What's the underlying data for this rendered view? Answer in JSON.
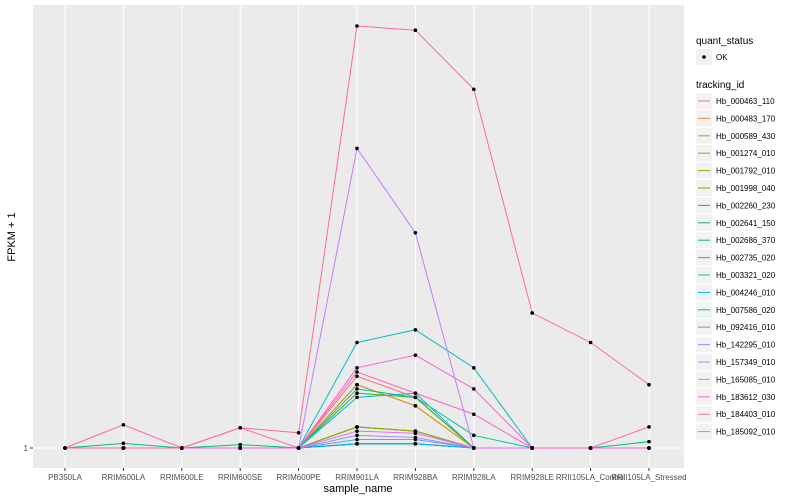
{
  "chart_data": {
    "type": "line",
    "title": "",
    "xlabel": "sample_name",
    "ylabel": "FPKM + 1",
    "y_tick_labels": [
      "1"
    ],
    "ylim": [
      0,
      1
    ],
    "grid": true,
    "legend_position": "right",
    "categories": [
      "PB350LA",
      "RRIM600LA",
      "RRIM600LE",
      "RRIM600SE",
      "RRIM600PE",
      "RRIM901LA",
      "RRIM928BA",
      "RRIM928LA",
      "RRIM928LE",
      "RRII105LA_Control",
      "RRII105LA_Stressed"
    ],
    "point_legend": {
      "title": "quant_status",
      "entries": [
        "OK"
      ]
    },
    "series_legend_title": "tracking_id",
    "series": [
      {
        "name": "Hb_000463_110",
        "color": "#F8766D",
        "values": [
          0,
          0,
          0,
          0,
          0,
          0.17,
          0.12,
          0,
          0,
          0,
          0
        ]
      },
      {
        "name": "Hb_000483_170",
        "color": "#EA8331",
        "values": [
          0,
          0,
          0,
          0,
          0,
          0.15,
          0.1,
          0,
          0,
          0,
          0
        ]
      },
      {
        "name": "Hb_000589_430",
        "color": "#D89000",
        "values": [
          0,
          0,
          0,
          0,
          0,
          0.15,
          0.1,
          0,
          0,
          0,
          0
        ]
      },
      {
        "name": "Hb_001274_010",
        "color": "#C09B00",
        "values": [
          0,
          0,
          0,
          0,
          0,
          0.05,
          0.04,
          0,
          0,
          0,
          0
        ]
      },
      {
        "name": "Hb_001792_010",
        "color": "#A3A500",
        "values": [
          0,
          0,
          0,
          0,
          0,
          0.05,
          0.04,
          0,
          0,
          0,
          0
        ]
      },
      {
        "name": "Hb_001998_040",
        "color": "#7CAE00",
        "values": [
          0,
          0,
          0,
          0,
          0,
          0.05,
          0.04,
          0,
          0,
          0,
          0
        ]
      },
      {
        "name": "Hb_002260_230",
        "color": "#39B600",
        "values": [
          0,
          0,
          0,
          0,
          0,
          0.13,
          0.12,
          0,
          0,
          0,
          0
        ]
      },
      {
        "name": "Hb_002641_150",
        "color": "#00BB4E",
        "values": [
          0,
          0,
          0,
          0,
          0,
          0.01,
          0.01,
          0,
          0,
          0,
          0
        ]
      },
      {
        "name": "Hb_002686_370",
        "color": "#00BF7D",
        "values": [
          0,
          0.011,
          0,
          0.008,
          0,
          0.01,
          0.01,
          0,
          0,
          0,
          0.015
        ]
      },
      {
        "name": "Hb_002735_020",
        "color": "#00C1A3",
        "values": [
          0,
          0,
          0,
          0,
          0,
          0.14,
          0.12,
          0.03,
          0,
          0,
          0
        ]
      },
      {
        "name": "Hb_003321_020",
        "color": "#00BFC4",
        "values": [
          0,
          0,
          0,
          0,
          0,
          0.25,
          0.28,
          0.19,
          0,
          0,
          0
        ]
      },
      {
        "name": "Hb_004246_010",
        "color": "#00B8E7",
        "values": [
          0,
          0,
          0,
          0,
          0,
          0.12,
          0.13,
          0,
          0,
          0,
          0
        ]
      },
      {
        "name": "Hb_007586_020",
        "color": "#00A9FF",
        "values": [
          0,
          0,
          0,
          0,
          0,
          0.01,
          0.01,
          0,
          0,
          0,
          0
        ]
      },
      {
        "name": "Hb_092416_010",
        "color": "#619CFF",
        "values": [
          0,
          0,
          0,
          0,
          0,
          0.02,
          0.02,
          0,
          0,
          0,
          0
        ]
      },
      {
        "name": "Hb_142295_010",
        "color": "#9590FF",
        "values": [
          0,
          0,
          0,
          0,
          0,
          0.03,
          0.025,
          0,
          0,
          0,
          0
        ]
      },
      {
        "name": "Hb_157349_010",
        "color": "#C77CFF",
        "values": [
          0,
          0,
          0,
          0,
          0,
          0.71,
          0.51,
          0,
          0,
          0,
          0
        ]
      },
      {
        "name": "Hb_165085_010",
        "color": "#E76BF3",
        "values": [
          0,
          0,
          0,
          0,
          0,
          0.04,
          0.035,
          0,
          0,
          0,
          0
        ]
      },
      {
        "name": "Hb_183612_030",
        "color": "#FA62DB",
        "values": [
          0,
          0,
          0,
          0,
          0,
          0.19,
          0.22,
          0.14,
          0,
          0,
          0
        ]
      },
      {
        "name": "Hb_184403_010",
        "color": "#FF62BC",
        "values": [
          0,
          0.055,
          0,
          0.048,
          0,
          0.18,
          0.13,
          0.08,
          0,
          0,
          0.05
        ]
      },
      {
        "name": "Hb_185092_010",
        "color": "#FF6C91",
        "values": [
          0,
          0,
          0,
          0.048,
          0.036,
          1.0,
          0.99,
          0.85,
          0.32,
          0.25,
          0.15
        ]
      }
    ]
  }
}
